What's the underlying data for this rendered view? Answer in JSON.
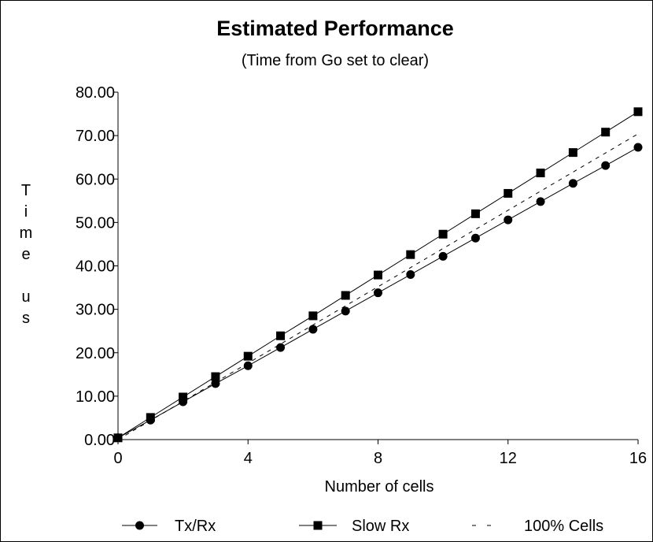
{
  "chart_data": {
    "type": "line",
    "title": "Estimated Performance",
    "subtitle": "(Time from Go set to clear)",
    "xlabel": "Number of cells",
    "ylabel": "Time us",
    "xlim": [
      0,
      16
    ],
    "ylim": [
      0,
      80
    ],
    "x_ticks": [
      "0",
      "4",
      "8",
      "12",
      "16"
    ],
    "y_ticks": [
      "0.00",
      "10.00",
      "20.00",
      "30.00",
      "40.00",
      "50.00",
      "60.00",
      "70.00",
      "80.00"
    ],
    "grid": false,
    "legend_position": "bottom",
    "x": [
      0,
      1,
      2,
      3,
      4,
      5,
      6,
      7,
      8,
      9,
      10,
      11,
      12,
      13,
      14,
      15,
      16
    ],
    "series": [
      {
        "name": "Tx/Rx",
        "marker": "circle",
        "line": "solid",
        "color": "#000000",
        "values": [
          0.4,
          4.5,
          8.7,
          12.9,
          17.0,
          21.2,
          25.4,
          29.6,
          33.8,
          38.0,
          42.2,
          46.4,
          50.6,
          54.8,
          59.0,
          63.1,
          67.3
        ]
      },
      {
        "name": "Slow Rx",
        "marker": "square",
        "line": "solid",
        "color": "#000000",
        "values": [
          0.4,
          5.1,
          9.8,
          14.5,
          19.2,
          23.9,
          28.5,
          33.2,
          37.9,
          42.6,
          47.3,
          52.0,
          56.7,
          61.4,
          66.1,
          70.8,
          75.5
        ]
      },
      {
        "name": "100% Cells",
        "marker": "none",
        "line": "dashed",
        "color": "#000000",
        "values": [
          0.0,
          4.4,
          8.8,
          13.2,
          17.6,
          22.0,
          26.4,
          30.8,
          35.2,
          39.6,
          44.0,
          48.4,
          52.8,
          57.2,
          61.6,
          66.0,
          70.4
        ]
      }
    ]
  }
}
